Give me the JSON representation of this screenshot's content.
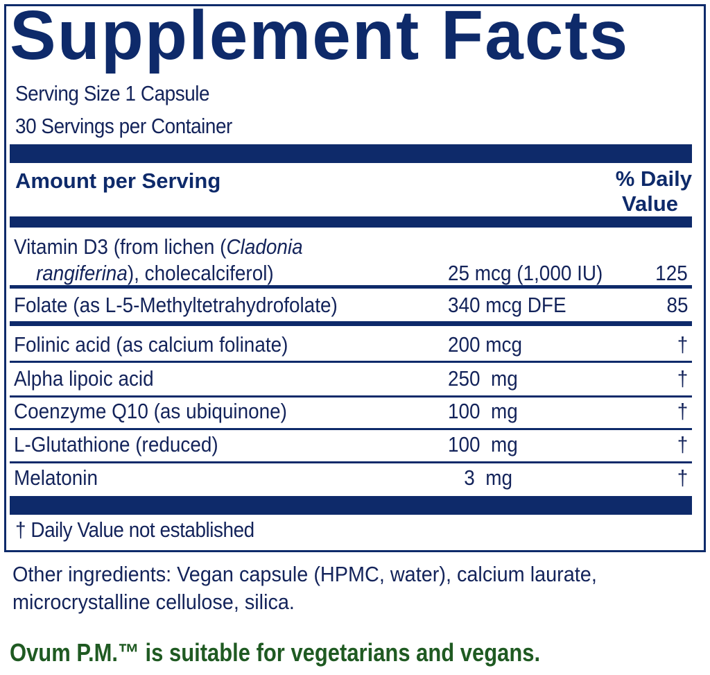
{
  "title": "Supplement Facts",
  "serving_size": "Serving Size 1 Capsule",
  "servings_per_container": "30 Servings per Container",
  "header": {
    "amount": "Amount per Serving",
    "dv_line1": "% Daily",
    "dv_line2": "Value"
  },
  "vitamin_d": {
    "name_plain1": "Vitamin D3 (from lichen (",
    "name_italic1": "Cladonia",
    "name_italic2": "rangiferina",
    "name_plain2": "), cholecalciferol)",
    "amount": "25 mcg (1,000 IU)",
    "dv": "125"
  },
  "rows": [
    {
      "name": "Folate (as L-5-Methyltetrahydrofolate)",
      "amount": "340 mcg DFE",
      "dv": "85"
    },
    {
      "name": "Folinic acid (as calcium folinate)",
      "amount": "200 mcg",
      "dv": "†"
    },
    {
      "name": "Alpha lipoic acid",
      "amount": "250  mg",
      "dv": "†"
    },
    {
      "name": "Coenzyme Q10 (as ubiquinone)",
      "amount": "100  mg",
      "dv": "†"
    },
    {
      "name": "L-Glutathione (reduced)",
      "amount": "100  mg",
      "dv": "†"
    },
    {
      "name": "Melatonin",
      "amount": "   3  mg",
      "dv": "†"
    }
  ],
  "footnote": "† Daily Value not established",
  "other_ingredients": "Other ingredients: Vegan capsule (HPMC, water), calcium laurate, microcrystalline cellulose, silica.",
  "vegan_statement": "Ovum P.M.™ is suitable for vegetarians and vegans.",
  "colors": {
    "navy": "#0e2a6a",
    "green": "#1f5a22"
  }
}
